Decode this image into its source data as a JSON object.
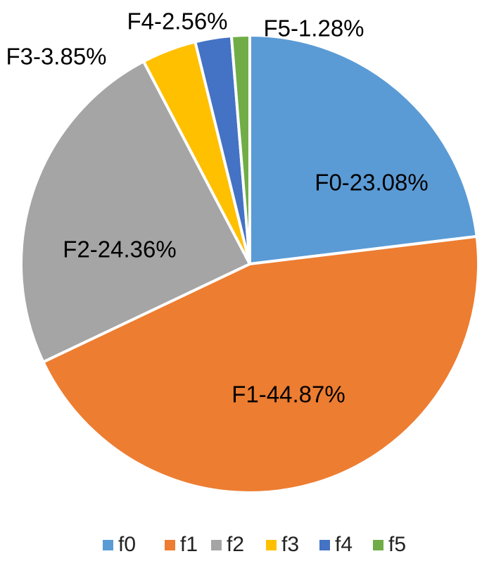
{
  "chart_data": {
    "type": "pie",
    "title": "",
    "start_angle_deg": 0,
    "direction": "clockwise",
    "legend_position": "bottom",
    "slices": [
      {
        "name": "f0",
        "label": "F0-23.08%",
        "value": 23.08,
        "color": "#5B9BD5"
      },
      {
        "name": "f1",
        "label": "F1-44.87%",
        "value": 44.87,
        "color": "#ED7D31"
      },
      {
        "name": "f2",
        "label": "F2-24.36%",
        "value": 24.36,
        "color": "#A5A5A5"
      },
      {
        "name": "f3",
        "label": "F3-3.85%",
        "value": 3.85,
        "color": "#FFC000"
      },
      {
        "name": "f4",
        "label": "F4-2.56%",
        "value": 2.56,
        "color": "#4472C4"
      },
      {
        "name": "f5",
        "label": "F5-1.28%",
        "value": 1.28,
        "color": "#70AD47"
      }
    ]
  }
}
